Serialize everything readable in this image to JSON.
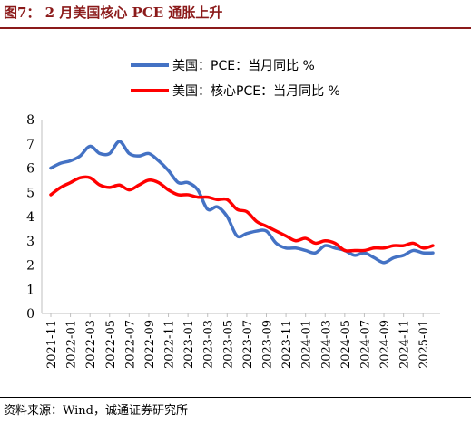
{
  "figure": {
    "title": "图7：  2 月美国核心 PCE 通胀上升",
    "source": "资料来源：Wind，诚通证券研究所"
  },
  "chart_data": {
    "type": "line",
    "x": [
      "2021-11",
      "2021-12",
      "2022-01",
      "2022-02",
      "2022-03",
      "2022-04",
      "2022-05",
      "2022-06",
      "2022-07",
      "2022-08",
      "2022-09",
      "2022-10",
      "2022-11",
      "2022-12",
      "2023-01",
      "2023-02",
      "2023-03",
      "2023-04",
      "2023-05",
      "2023-06",
      "2023-07",
      "2023-08",
      "2023-09",
      "2023-10",
      "2023-11",
      "2023-12",
      "2024-01",
      "2024-02",
      "2024-03",
      "2024-04",
      "2024-05",
      "2024-06",
      "2024-07",
      "2024-08",
      "2024-09",
      "2024-10",
      "2024-11",
      "2024-12",
      "2025-01",
      "2025-02"
    ],
    "x_tick_labels": [
      "2021-11",
      "2022-01",
      "2022-03",
      "2022-05",
      "2022-07",
      "2022-09",
      "2022-11",
      "2023-01",
      "2023-03",
      "2023-05",
      "2023-07",
      "2023-09",
      "2023-11",
      "2024-01",
      "2024-03",
      "2024-05",
      "2024-07",
      "2024-09",
      "2024-11",
      "2025-01"
    ],
    "series": [
      {
        "name": "美国：PCE：当月同比 %",
        "color": "#4472c4",
        "values": [
          6.0,
          6.2,
          6.3,
          6.5,
          6.9,
          6.6,
          6.6,
          7.1,
          6.6,
          6.5,
          6.6,
          6.3,
          5.9,
          5.4,
          5.4,
          5.1,
          4.3,
          4.4,
          4.0,
          3.2,
          3.3,
          3.4,
          3.4,
          2.9,
          2.7,
          2.7,
          2.6,
          2.5,
          2.8,
          2.7,
          2.6,
          2.4,
          2.5,
          2.3,
          2.1,
          2.3,
          2.4,
          2.6,
          2.5,
          2.5
        ]
      },
      {
        "name": "美国：核心PCE：当月同比 %",
        "color": "#ff0000",
        "values": [
          4.9,
          5.2,
          5.4,
          5.6,
          5.6,
          5.3,
          5.2,
          5.3,
          5.1,
          5.3,
          5.5,
          5.4,
          5.1,
          4.9,
          4.9,
          4.8,
          4.8,
          4.7,
          4.7,
          4.3,
          4.2,
          3.8,
          3.6,
          3.4,
          3.2,
          3.0,
          3.1,
          2.9,
          3.0,
          2.9,
          2.6,
          2.6,
          2.6,
          2.7,
          2.7,
          2.8,
          2.8,
          2.9,
          2.7,
          2.8
        ]
      }
    ],
    "ylim": [
      0,
      8
    ],
    "yticks": [
      0,
      1,
      2,
      3,
      4,
      5,
      6,
      7,
      8
    ],
    "grid": false,
    "legend_position": "top"
  }
}
